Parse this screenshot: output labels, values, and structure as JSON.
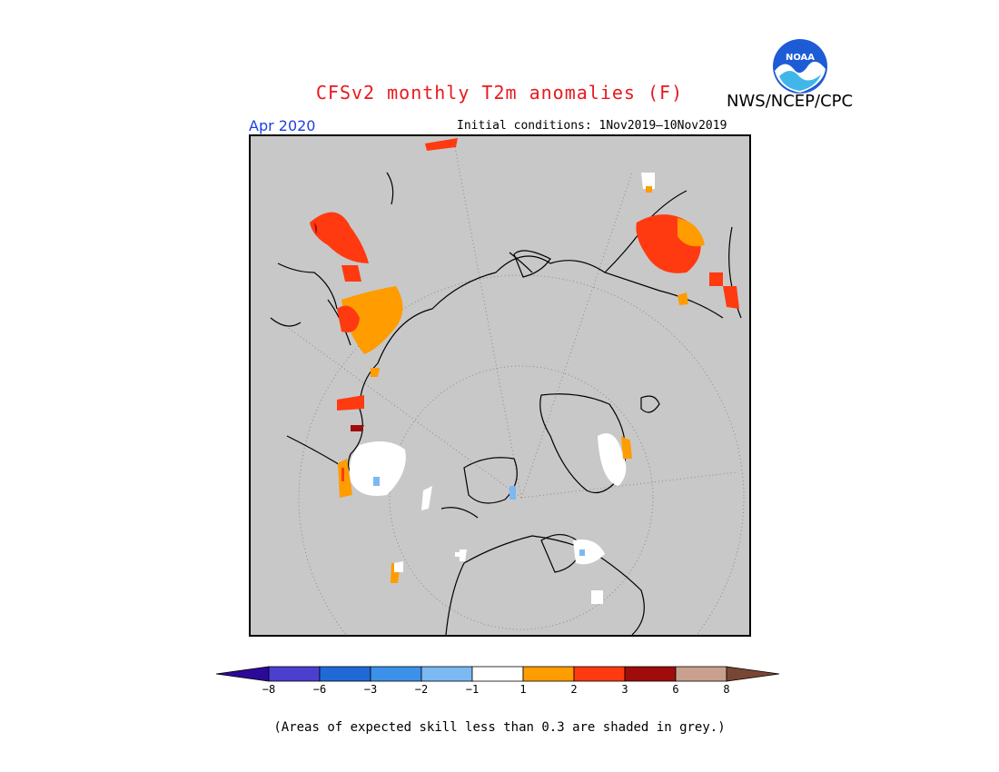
{
  "header": {
    "title": "CFSv2 monthly T2m anomalies (F)",
    "agency": "NWS/NCEP/CPC",
    "logo_text": "NOAA",
    "valid_month": "Apr 2020",
    "initial_conditions": "Initial conditions: 1Nov2019–10Nov2019"
  },
  "map": {
    "projection": "north polar stereographic",
    "background_color": "#c8c8c8"
  },
  "legend": {
    "units": "F",
    "ticks": [
      "−8",
      "−6",
      "−3",
      "−2",
      "−1",
      "1",
      "2",
      "3",
      "6",
      "8"
    ],
    "colors": [
      "#2b0a9a",
      "#4b3fd0",
      "#1f6ad6",
      "#3c91ea",
      "#7cb8f2",
      "#ffffff",
      "#ff9c00",
      "#ff3a10",
      "#a00c0c",
      "#c9a08e",
      "#7a4634"
    ]
  },
  "footnote": "(Areas of expected skill less than 0.3 are shaded in grey.)"
}
